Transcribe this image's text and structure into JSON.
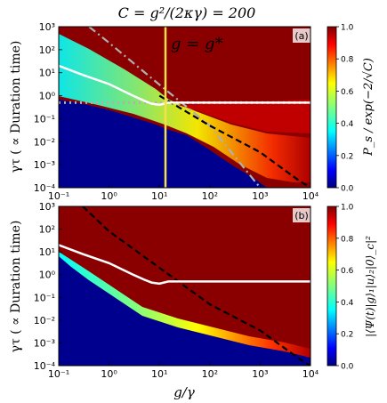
{
  "figure": {
    "title": "C = g²/(2κγ) = 200",
    "xlabel": "g/γ",
    "ylabel_top": "γτ  ( ∝ Duration time)",
    "ylabel_bottom": "γτ  ( ∝ Duration time)",
    "colors": {
      "low": "#00007f",
      "high": "#7f0000",
      "white_curve": "#ffffff",
      "dashed_black": "#000000",
      "dashdot_gray": "#b0b0b0",
      "vline": "#f5e04a"
    }
  },
  "chart_data": [
    {
      "type": "heatmap",
      "panel_label": "(a)",
      "annotation": "g = g*",
      "colorbar_label": "P_s / exp(−2/√C)",
      "colorbar_ticks": [
        "0.0",
        "0.2",
        "0.4",
        "0.6",
        "0.8",
        "1.0"
      ],
      "clim": [
        0,
        1
      ],
      "xscale": "log",
      "yscale": "log",
      "xlim": [
        0.1,
        10000
      ],
      "ylim": [
        0.0001,
        1000
      ],
      "xticks": [
        "10⁻¹",
        "10⁰",
        "10¹",
        "10²",
        "10³",
        "10⁴"
      ],
      "yticks": [
        "10⁻⁴",
        "10⁻³",
        "10⁻²",
        "10⁻¹",
        "10⁰",
        "10¹",
        "10²",
        "10³"
      ],
      "vline_x": 14,
      "white_curve": {
        "x": [
          0.1,
          0.3,
          1,
          3,
          5,
          7,
          10,
          15,
          10000
        ],
        "y": [
          20,
          8,
          3.2,
          1.0,
          0.6,
          0.45,
          0.4,
          0.5,
          0.5
        ]
      },
      "gray_dotted_y": 0.5,
      "dashed_black": {
        "x": [
          10,
          100,
          1000,
          6000,
          10000
        ],
        "y": [
          1.0,
          0.05,
          0.0035,
          0.0002,
          0.0001
        ]
      },
      "dashdot_gray": {
        "x": [
          0.4,
          1,
          10,
          100,
          1000
        ],
        "y": [
          1000,
          200,
          3,
          0.05,
          0.0001
        ]
      }
    },
    {
      "type": "heatmap",
      "panel_label": "(b)",
      "colorbar_label": "|⟨Ψ(t)|g⟩₁|u⟩₂|0⟩_c|²",
      "colorbar_ticks": [
        "0.0",
        "0.2",
        "0.4",
        "0.6",
        "0.8",
        "1.0"
      ],
      "clim": [
        0,
        1
      ],
      "xscale": "log",
      "yscale": "log",
      "xlim": [
        0.1,
        10000
      ],
      "ylim": [
        0.0001,
        1000
      ],
      "xticks": [
        "10⁻¹",
        "10⁰",
        "10¹",
        "10²",
        "10³",
        "10⁴"
      ],
      "yticks": [
        "10⁻⁴",
        "10⁻³",
        "10⁻²",
        "10⁻¹",
        "10⁰",
        "10¹",
        "10²",
        "10³"
      ],
      "white_curve": {
        "x": [
          0.1,
          0.3,
          1,
          3,
          5,
          7,
          10,
          15,
          10000
        ],
        "y": [
          20,
          8,
          3.2,
          1.0,
          0.6,
          0.45,
          0.4,
          0.5,
          0.5
        ]
      },
      "dashed_black": {
        "x": [
          0.3,
          1,
          10,
          100,
          1000,
          6000,
          10000
        ],
        "y": [
          1000,
          80,
          2.0,
          0.05,
          0.0035,
          0.0002,
          0.0001
        ]
      }
    }
  ]
}
